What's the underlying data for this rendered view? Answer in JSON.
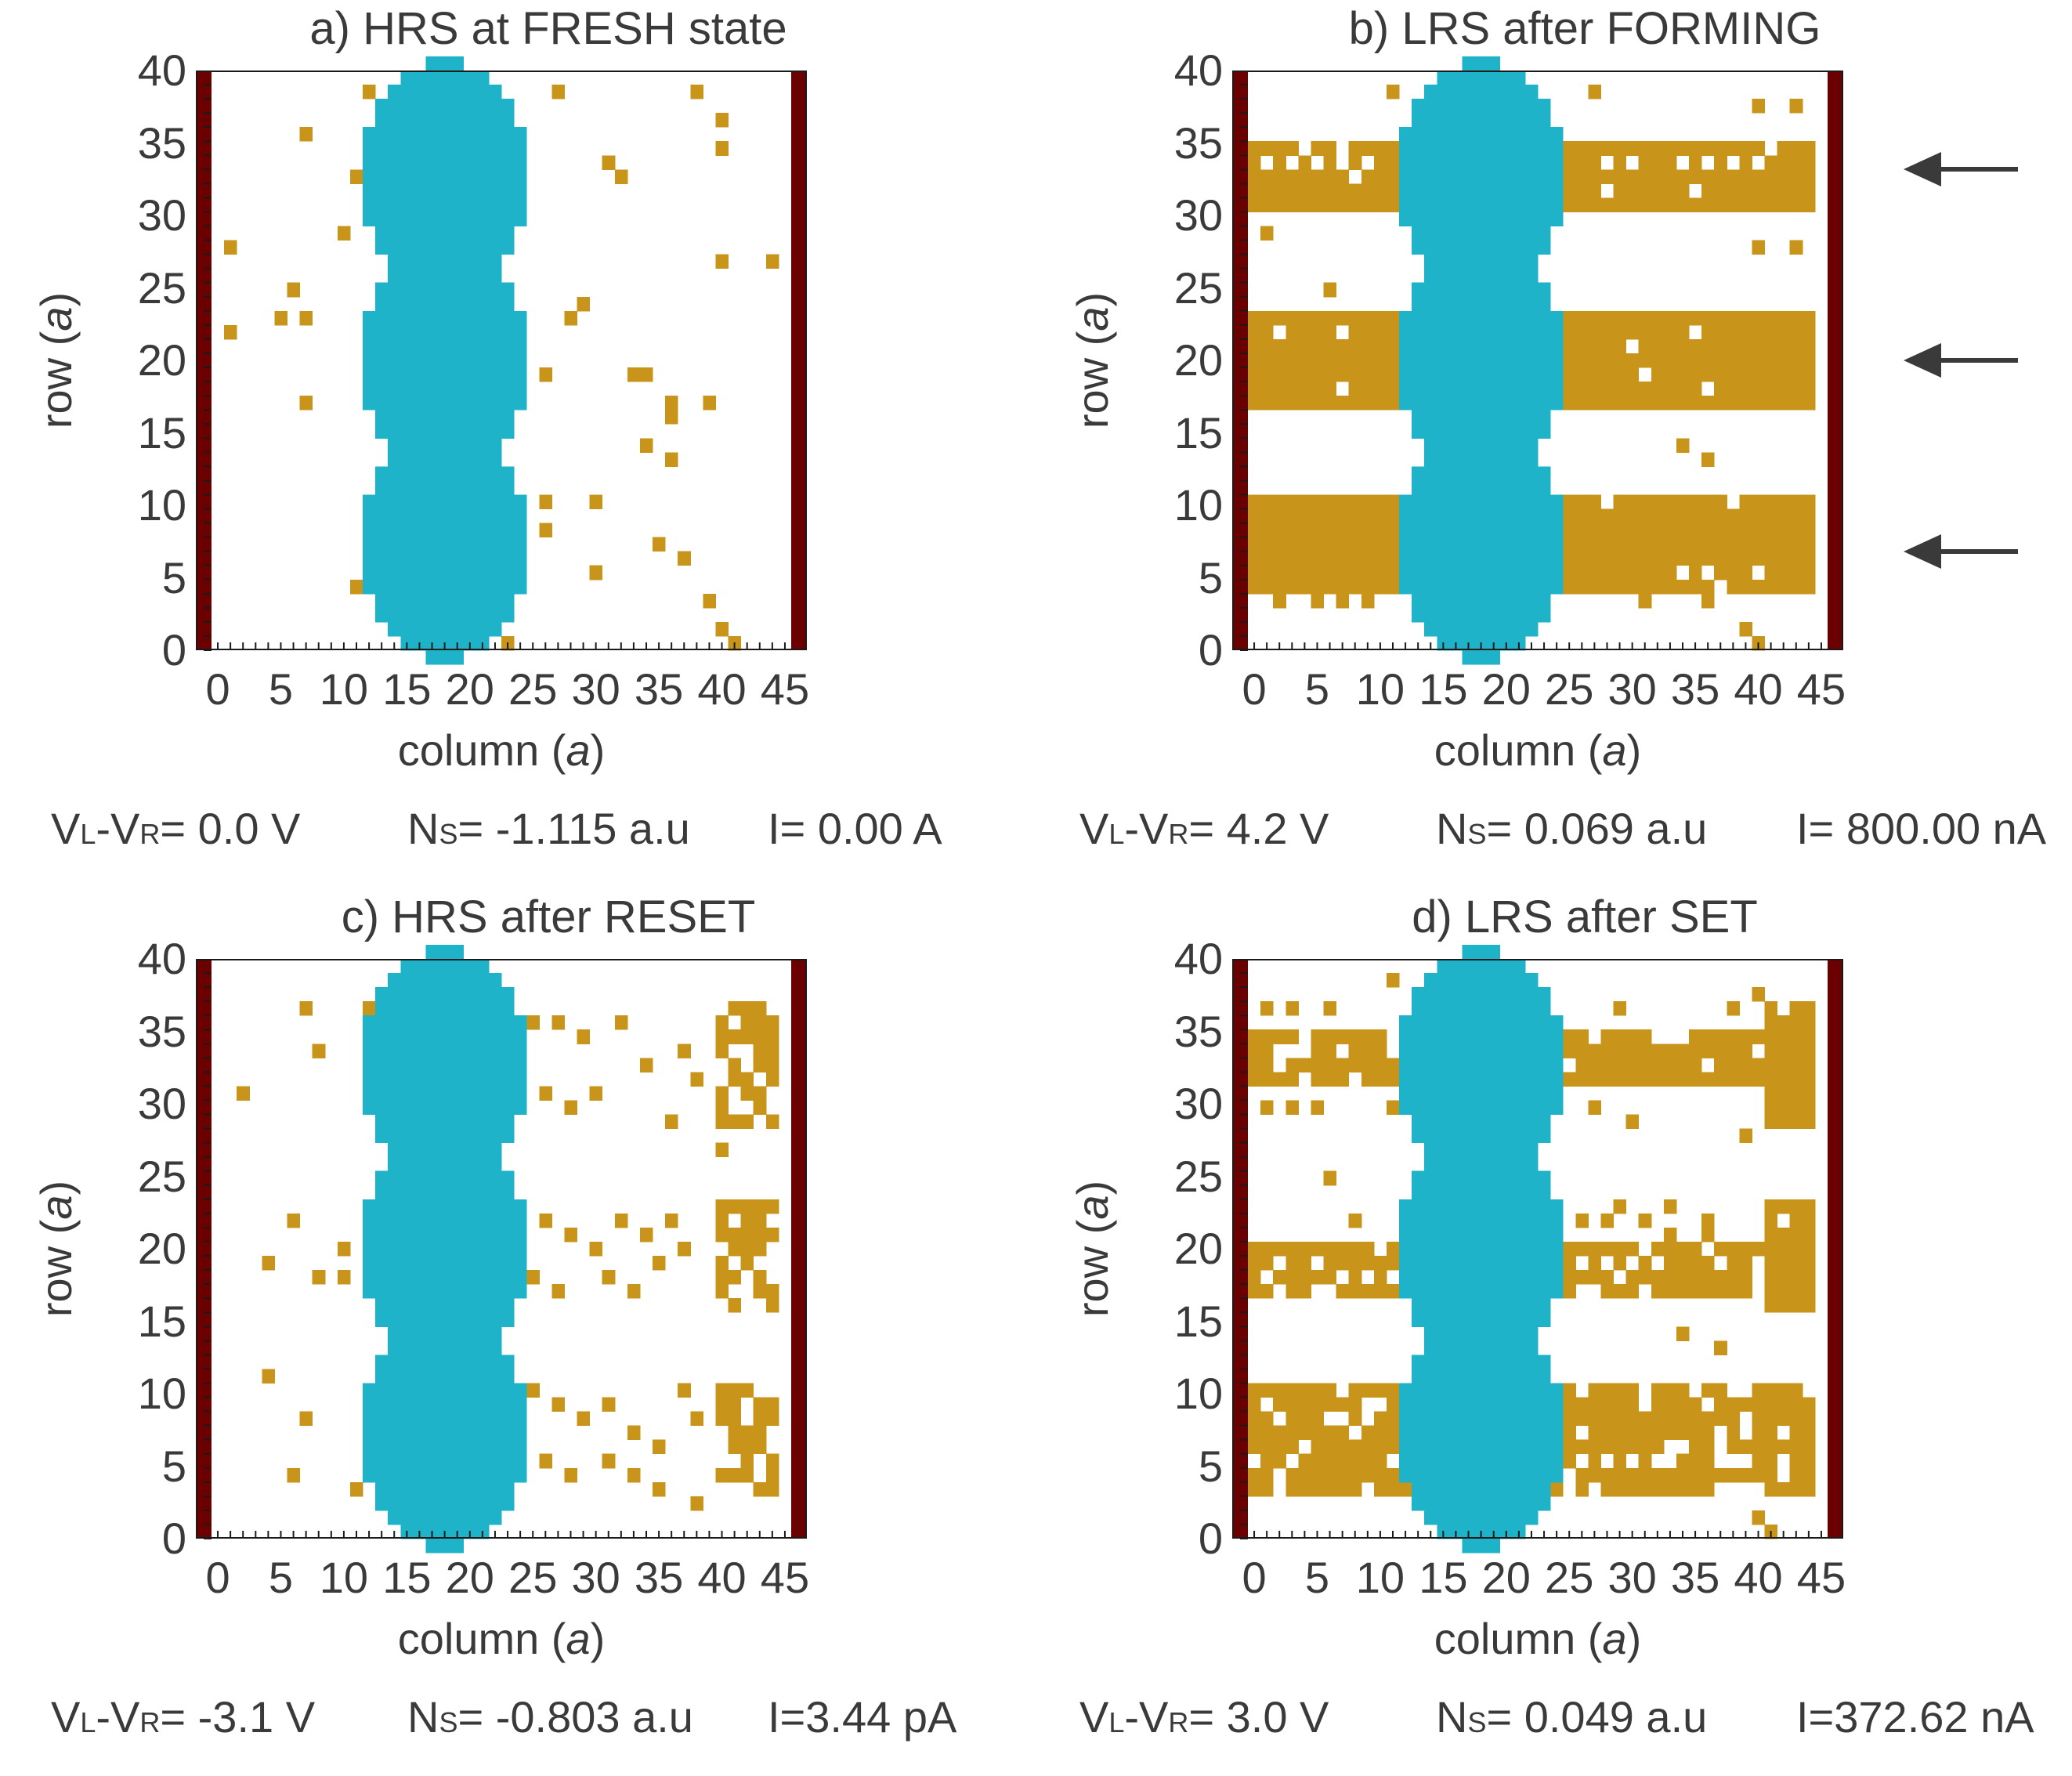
{
  "chart_data": [
    {
      "type": "heatmap",
      "panel": "a",
      "title": "a) HRS at FRESH state",
      "xlabel": "column (",
      "ylabel": "row (",
      "unit_symbol": "a",
      "xlim": [
        0,
        45
      ],
      "ylim": [
        0,
        40
      ],
      "xticks": [
        "0",
        "5",
        "10",
        "15",
        "20",
        "25",
        "30",
        "35",
        "40",
        "45"
      ],
      "yticks": [
        "0",
        "5",
        "10",
        "15",
        "20",
        "25",
        "30",
        "35",
        "40"
      ],
      "electrodes": [
        "left",
        "right"
      ],
      "bands": [],
      "particles": [
        [
          11,
          33
        ],
        [
          11,
          4
        ],
        [
          7,
          36
        ],
        [
          10,
          29
        ],
        [
          1,
          28
        ],
        [
          1,
          22
        ],
        [
          6,
          25
        ],
        [
          7,
          23
        ],
        [
          5,
          23
        ],
        [
          7,
          17
        ],
        [
          12,
          39
        ],
        [
          27,
          39
        ],
        [
          38,
          39
        ],
        [
          40,
          37
        ],
        [
          40,
          35
        ],
        [
          32,
          33
        ],
        [
          31,
          34
        ],
        [
          40,
          27
        ],
        [
          44,
          27
        ],
        [
          29,
          24
        ],
        [
          28,
          23
        ],
        [
          26,
          19
        ],
        [
          33,
          19
        ],
        [
          34,
          19
        ],
        [
          36,
          17
        ],
        [
          36,
          16
        ],
        [
          39,
          17
        ],
        [
          34,
          14
        ],
        [
          36,
          13
        ],
        [
          26,
          10
        ],
        [
          26,
          8
        ],
        [
          30,
          10
        ],
        [
          30,
          5
        ],
        [
          35,
          7
        ],
        [
          37,
          6
        ],
        [
          39,
          3
        ],
        [
          40,
          1
        ],
        [
          41,
          0
        ],
        [
          20,
          0
        ],
        [
          23,
          0
        ]
      ],
      "stats": {
        "v_label": "V",
        "l_sub": "L",
        "r_sub": "R",
        "v": "= 0.0 V",
        "n_label": "N",
        "s_sub": "S",
        "n": "= -1.115 a.u",
        "i": "I= 0.00 A"
      }
    },
    {
      "type": "heatmap",
      "panel": "b",
      "title": "b) LRS after FORMING",
      "xlabel": "column (",
      "ylabel": "row (",
      "unit_symbol": "a",
      "xlim": [
        0,
        45
      ],
      "ylim": [
        0,
        40
      ],
      "xticks": [
        "0",
        "5",
        "10",
        "15",
        "20",
        "25",
        "30",
        "35",
        "40",
        "45"
      ],
      "yticks": [
        "0",
        "5",
        "10",
        "15",
        "20",
        "25",
        "30",
        "35",
        "40"
      ],
      "electrodes": [
        "left",
        "right"
      ],
      "bands": [
        {
          "rows": [
            31,
            35
          ],
          "style": "dense",
          "holes": [
            [
              1,
              34
            ],
            [
              3,
              34
            ],
            [
              5,
              34
            ],
            [
              7,
              34
            ],
            [
              9,
              34
            ],
            [
              28,
              34
            ],
            [
              30,
              34
            ],
            [
              34,
              34
            ],
            [
              36,
              34
            ],
            [
              38,
              34
            ],
            [
              40,
              34
            ]
          ]
        },
        {
          "rows": [
            17,
            23
          ],
          "style": "dense",
          "holes": [
            [
              2,
              22
            ],
            [
              7,
              22
            ],
            [
              35,
              22
            ]
          ]
        },
        {
          "rows": [
            4,
            10
          ],
          "style": "dense",
          "holes": [
            [
              38,
              10
            ]
          ]
        }
      ],
      "particles": [
        [
          11,
          39
        ],
        [
          27,
          39
        ],
        [
          40,
          38
        ],
        [
          43,
          38
        ],
        [
          1,
          29
        ],
        [
          40,
          28
        ],
        [
          43,
          28
        ],
        [
          6,
          25
        ],
        [
          34,
          14
        ],
        [
          36,
          13
        ],
        [
          15,
          13
        ],
        [
          2,
          3
        ],
        [
          5,
          3
        ],
        [
          7,
          3
        ],
        [
          9,
          3
        ],
        [
          13,
          3
        ],
        [
          31,
          3
        ],
        [
          36,
          3
        ],
        [
          39,
          1
        ],
        [
          40,
          0
        ],
        [
          20,
          0
        ]
      ],
      "arrows": 3,
      "stats": {
        "v_label": "V",
        "l_sub": "L",
        "r_sub": "R",
        "v": "= 4.2 V",
        "n_label": "N",
        "s_sub": "S",
        "n": "= 0.069 a.u",
        "i": "I= 800.00 nA"
      }
    },
    {
      "type": "heatmap",
      "panel": "c",
      "title": "c) HRS after RESET",
      "xlabel": "column (",
      "ylabel": "row (",
      "unit_symbol": "a",
      "xlim": [
        0,
        45
      ],
      "ylim": [
        0,
        40
      ],
      "xticks": [
        "0",
        "5",
        "10",
        "15",
        "20",
        "25",
        "30",
        "35",
        "40",
        "45"
      ],
      "yticks": [
        "0",
        "5",
        "10",
        "15",
        "20",
        "25",
        "30",
        "35",
        "40"
      ],
      "electrodes": [
        "left",
        "right"
      ],
      "bands": [
        {
          "rows": [
            29,
            37
          ],
          "cols": [
            40,
            44
          ],
          "style": "sparse"
        },
        {
          "rows": [
            16,
            23
          ],
          "cols": [
            40,
            44
          ],
          "style": "sparse"
        },
        {
          "rows": [
            3,
            10
          ],
          "cols": [
            40,
            44
          ],
          "style": "sparse"
        }
      ],
      "particles": [
        [
          7,
          37
        ],
        [
          8,
          34
        ],
        [
          2,
          31
        ],
        [
          12,
          30
        ],
        [
          12,
          37
        ],
        [
          25,
          36
        ],
        [
          27,
          36
        ],
        [
          29,
          35
        ],
        [
          32,
          36
        ],
        [
          34,
          33
        ],
        [
          37,
          34
        ],
        [
          38,
          32
        ],
        [
          26,
          31
        ],
        [
          28,
          30
        ],
        [
          30,
          31
        ],
        [
          36,
          29
        ],
        [
          40,
          27
        ],
        [
          6,
          22
        ],
        [
          10,
          20
        ],
        [
          4,
          19
        ],
        [
          8,
          18
        ],
        [
          10,
          18
        ],
        [
          26,
          22
        ],
        [
          28,
          21
        ],
        [
          30,
          20
        ],
        [
          32,
          22
        ],
        [
          34,
          21
        ],
        [
          36,
          22
        ],
        [
          25,
          18
        ],
        [
          27,
          17
        ],
        [
          31,
          18
        ],
        [
          33,
          17
        ],
        [
          35,
          19
        ],
        [
          37,
          20
        ],
        [
          4,
          11
        ],
        [
          7,
          8
        ],
        [
          6,
          4
        ],
        [
          11,
          3
        ],
        [
          12,
          5
        ],
        [
          25,
          10
        ],
        [
          27,
          9
        ],
        [
          29,
          8
        ],
        [
          31,
          9
        ],
        [
          33,
          7
        ],
        [
          35,
          6
        ],
        [
          37,
          10
        ],
        [
          26,
          5
        ],
        [
          28,
          4
        ],
        [
          31,
          5
        ],
        [
          33,
          4
        ],
        [
          35,
          3
        ],
        [
          38,
          2
        ],
        [
          38,
          8
        ]
      ],
      "stats": {
        "v_label": "V",
        "l_sub": "L",
        "r_sub": "R",
        "v": "= -3.1 V",
        "n_label": "N",
        "s_sub": "S",
        "n": "= -0.803 a.u",
        "i": "I=3.44 pA"
      }
    },
    {
      "type": "heatmap",
      "panel": "d",
      "title": "d) LRS after SET",
      "xlabel": "column (",
      "ylabel": "row (",
      "unit_symbol": "a",
      "xlim": [
        0,
        45
      ],
      "ylim": [
        0,
        40
      ],
      "xticks": [
        "0",
        "5",
        "10",
        "15",
        "20",
        "25",
        "30",
        "35",
        "40",
        "45"
      ],
      "yticks": [
        "0",
        "5",
        "10",
        "15",
        "20",
        "25",
        "30",
        "35",
        "40"
      ],
      "electrodes": [
        "left",
        "right"
      ],
      "bands": [
        {
          "rows": [
            32,
            35
          ],
          "style": "medium"
        },
        {
          "rows": [
            17,
            20
          ],
          "style": "medium"
        },
        {
          "rows": [
            3,
            10
          ],
          "style": "medium"
        },
        {
          "rows": [
            29,
            37
          ],
          "cols": [
            41,
            44
          ],
          "style": "dense"
        },
        {
          "rows": [
            16,
            23
          ],
          "cols": [
            41,
            44
          ],
          "style": "dense"
        }
      ],
      "particles": [
        [
          1,
          37
        ],
        [
          3,
          37
        ],
        [
          6,
          37
        ],
        [
          11,
          39
        ],
        [
          29,
          37
        ],
        [
          38,
          37
        ],
        [
          40,
          38
        ],
        [
          1,
          30
        ],
        [
          3,
          30
        ],
        [
          5,
          30
        ],
        [
          11,
          30
        ],
        [
          27,
          30
        ],
        [
          30,
          29
        ],
        [
          39,
          28
        ],
        [
          43,
          29
        ],
        [
          6,
          25
        ],
        [
          8,
          22
        ],
        [
          26,
          22
        ],
        [
          28,
          22
        ],
        [
          31,
          22
        ],
        [
          33,
          21
        ],
        [
          36,
          22
        ],
        [
          34,
          14
        ],
        [
          37,
          13
        ],
        [
          40,
          1
        ],
        [
          41,
          0
        ],
        [
          20,
          0
        ],
        [
          36,
          21
        ],
        [
          33,
          23
        ],
        [
          29,
          23
        ]
      ],
      "stats": {
        "v_label": "V",
        "l_sub": "L",
        "r_sub": "R",
        "v": "= 3.0 V",
        "n_label": "N",
        "s_sub": "S",
        "n": "= 0.049 a.u",
        "i": "I=372.62 nA"
      }
    }
  ],
  "colors": {
    "electrode": "#6b0000",
    "cluster": "#1fb3c9",
    "particle": "#c8941a",
    "arrow": "#3a3a3a",
    "text": "#3a3a3a"
  }
}
